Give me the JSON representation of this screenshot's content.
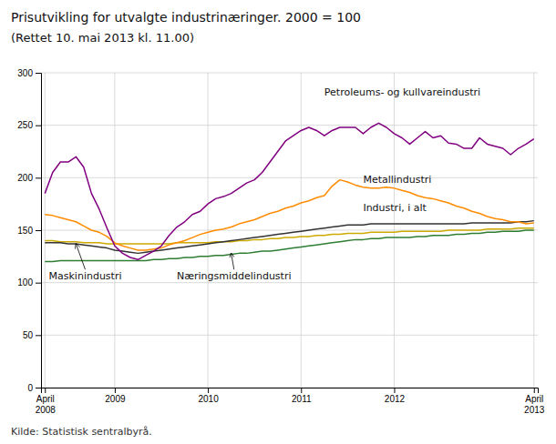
{
  "chart_data": {
    "type": "line",
    "title": "Prisutvikling for utvalgte industrinæringer. 2000 = 100",
    "subtitle": "(Rettet 10. mai 2013 kl. 11.00)",
    "source": "Kilde: Statistisk sentralbyrå.",
    "categories": [
      "April\n2008",
      null,
      null,
      null,
      null,
      null,
      null,
      null,
      null,
      "2009",
      null,
      null,
      null,
      null,
      null,
      null,
      null,
      null,
      null,
      null,
      null,
      "2010",
      null,
      null,
      null,
      null,
      null,
      null,
      null,
      null,
      null,
      null,
      null,
      "2011",
      null,
      null,
      null,
      null,
      null,
      null,
      null,
      null,
      null,
      null,
      null,
      "2012",
      null,
      null,
      null,
      null,
      null,
      null,
      null,
      null,
      null,
      null,
      null,
      null,
      null,
      null,
      null,
      null,
      null,
      "April\n2013"
    ],
    "series": [
      {
        "color": "#800080",
        "values": [
          185,
          205,
          215,
          215,
          220,
          210,
          185,
          170,
          152,
          135,
          128,
          124,
          122,
          126,
          130,
          135,
          145,
          153,
          158,
          165,
          168,
          175,
          180,
          182,
          185,
          190,
          195,
          198,
          205,
          215,
          225,
          235,
          240,
          245,
          248,
          245,
          240,
          245,
          248,
          248,
          248,
          242,
          248,
          252,
          248,
          242,
          238,
          232,
          238,
          244,
          238,
          240,
          233,
          232,
          228,
          228,
          238,
          232,
          230,
          228,
          222,
          228,
          232,
          237
        ]
      },
      {
        "color": "#ff8c00",
        "values": [
          165,
          164,
          162,
          160,
          158,
          154,
          150,
          148,
          144,
          138,
          135,
          133,
          131,
          131,
          132,
          133,
          136,
          138,
          140,
          143,
          146,
          148,
          150,
          151,
          153,
          156,
          158,
          160,
          163,
          166,
          168,
          171,
          173,
          176,
          178,
          181,
          183,
          192,
          198,
          196,
          193,
          191,
          190,
          190,
          191,
          190,
          188,
          186,
          183,
          181,
          180,
          178,
          176,
          173,
          171,
          168,
          166,
          163,
          161,
          160,
          158,
          158,
          156,
          157
        ]
      },
      {
        "color": "#333333",
        "values": [
          138,
          138,
          138,
          137,
          137,
          136,
          135,
          134,
          133,
          131,
          130,
          129,
          128,
          129,
          130,
          131,
          132,
          133,
          134,
          135,
          136,
          137,
          138,
          139,
          140,
          141,
          142,
          143,
          144,
          145,
          146,
          147,
          148,
          149,
          150,
          151,
          152,
          153,
          154,
          155,
          155,
          155,
          156,
          156,
          156,
          156,
          156,
          156,
          156,
          156,
          156,
          156,
          156,
          156,
          156,
          157,
          157,
          157,
          157,
          157,
          157,
          158,
          158,
          159
        ]
      },
      {
        "color": "#ccaa00",
        "values": [
          140,
          140,
          139,
          139,
          139,
          138,
          138,
          138,
          137,
          137,
          137,
          137,
          137,
          137,
          137,
          137,
          137,
          138,
          138,
          138,
          138,
          138,
          139,
          139,
          139,
          140,
          140,
          141,
          141,
          142,
          142,
          143,
          143,
          144,
          144,
          145,
          145,
          146,
          146,
          147,
          147,
          147,
          148,
          148,
          148,
          148,
          149,
          149,
          149,
          149,
          149,
          149,
          150,
          150,
          150,
          150,
          150,
          151,
          151,
          151,
          151,
          152,
          152,
          152
        ]
      },
      {
        "color": "#2e7d32",
        "values": [
          120,
          120,
          121,
          121,
          121,
          121,
          121,
          121,
          121,
          121,
          121,
          121,
          121,
          121,
          122,
          122,
          123,
          123,
          124,
          124,
          125,
          125,
          126,
          126,
          127,
          128,
          128,
          129,
          130,
          130,
          131,
          132,
          133,
          134,
          135,
          136,
          137,
          138,
          139,
          140,
          141,
          141,
          142,
          142,
          143,
          143,
          143,
          143,
          144,
          144,
          145,
          145,
          145,
          146,
          146,
          147,
          147,
          148,
          148,
          149,
          149,
          149,
          150,
          150
        ]
      }
    ],
    "annotations": [
      "Maskinindustri",
      "Næringsmiddelindustri",
      "Metallindustri",
      "Industri, i alt",
      "Petroleums- og kullvareindustri"
    ],
    "ylim": [
      0,
      300
    ],
    "yticks": [
      0,
      50,
      100,
      150,
      200,
      250,
      300
    ],
    "grid": true
  }
}
